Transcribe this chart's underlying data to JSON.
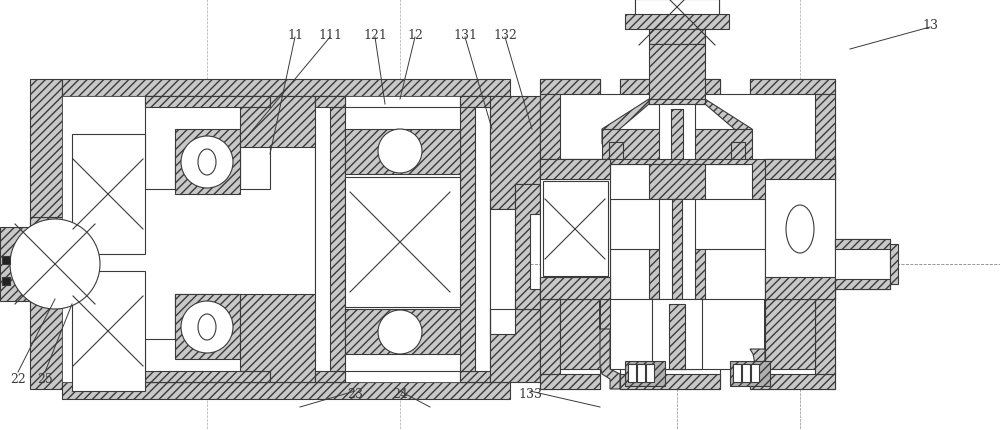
{
  "bg_color": "#ffffff",
  "line_color": "#3a3a3a",
  "figsize": [
    10.0,
    4.31
  ],
  "dpi": 100,
  "hatch_gray": "#c8c8c8",
  "labels_top": {
    "11": [
      295,
      38,
      270,
      155
    ],
    "111": [
      330,
      38,
      245,
      140
    ],
    "121": [
      375,
      38,
      385,
      105
    ],
    "12": [
      415,
      38,
      400,
      100
    ],
    "131": [
      465,
      38,
      492,
      130
    ],
    "132": [
      505,
      38,
      532,
      130
    ],
    "13": [
      930,
      28,
      850,
      50
    ]
  },
  "labels_bot": {
    "23": [
      355,
      392,
      300,
      408
    ],
    "24": [
      400,
      392,
      430,
      408
    ],
    "133": [
      530,
      392,
      600,
      408
    ]
  },
  "labels_left": {
    "22": [
      18,
      373,
      55,
      300
    ],
    "25": [
      45,
      373,
      72,
      305
    ]
  }
}
